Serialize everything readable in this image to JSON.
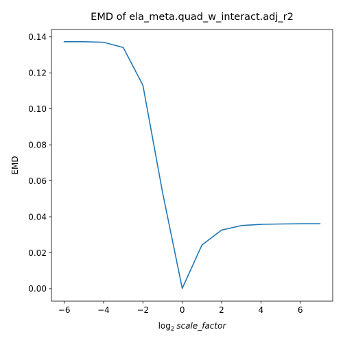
{
  "chart_data": {
    "type": "line",
    "title": "EMD of ela_meta.quad_w_interact.adj_r2",
    "xlabel_prefix": "log",
    "xlabel_sub": "2",
    "xlabel_var": "scale_factor",
    "ylabel": "EMD",
    "xlim": [
      -6.65,
      7.65
    ],
    "ylim": [
      -0.0069,
      0.1441
    ],
    "xticks": [
      -6,
      -4,
      -2,
      0,
      2,
      4,
      6
    ],
    "xtick_labels": [
      "−6",
      "−4",
      "−2",
      "0",
      "2",
      "4",
      "6"
    ],
    "yticks": [
      0.0,
      0.02,
      0.04,
      0.06,
      0.08,
      0.1,
      0.12,
      0.14
    ],
    "ytick_labels": [
      "0.00",
      "0.02",
      "0.04",
      "0.06",
      "0.08",
      "0.10",
      "0.12",
      "0.14"
    ],
    "grid": false,
    "series": [
      {
        "color": "#1f77b4",
        "x": [
          -6,
          -5,
          -4,
          -3,
          -2,
          -1,
          0,
          1,
          2,
          3,
          4,
          5,
          6,
          7
        ],
        "y": [
          0.1373,
          0.1373,
          0.137,
          0.1341,
          0.1131,
          0.0535,
          0.0002,
          0.0243,
          0.0326,
          0.0351,
          0.0358,
          0.036,
          0.0361,
          0.0361
        ]
      }
    ]
  }
}
